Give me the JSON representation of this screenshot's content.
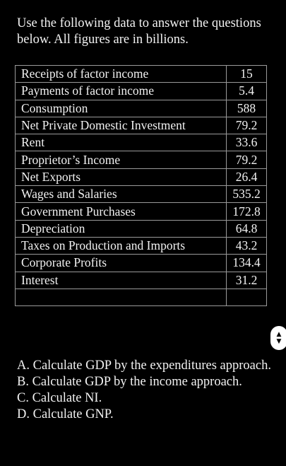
{
  "intro": "Use the following data to answer the questions below. All figures are in billions.",
  "rows": [
    {
      "label": "Receipts of factor income",
      "value": "15"
    },
    {
      "label": "Payments of factor income",
      "value": "5.4"
    },
    {
      "label": "Consumption",
      "value": "588"
    },
    {
      "label": "Net Private Domestic Investment",
      "value": "79.2"
    },
    {
      "label": "Rent",
      "value": "33.6"
    },
    {
      "label": "Proprietor’s Income",
      "value": "79.2"
    },
    {
      "label": "Net Exports",
      "value": "26.4"
    },
    {
      "label": "Wages and Salaries",
      "value": "535.2"
    },
    {
      "label": "Government Purchases",
      "value": "172.8"
    },
    {
      "label": "Depreciation",
      "value": "64.8"
    },
    {
      "label": "Taxes on Production and Imports",
      "value": "43.2"
    },
    {
      "label": "Corporate Profits",
      "value": "134.4"
    },
    {
      "label": "Interest",
      "value": "31.2"
    },
    {
      "label": "",
      "value": ""
    }
  ],
  "scroll_icon": "up-down-arrows-icon",
  "questions": [
    "A. Calculate GDP by the expenditures approach.",
    "B. Calculate GDP by the income approach.",
    "C. Calculate NI.",
    "D. Calculate GNP."
  ]
}
